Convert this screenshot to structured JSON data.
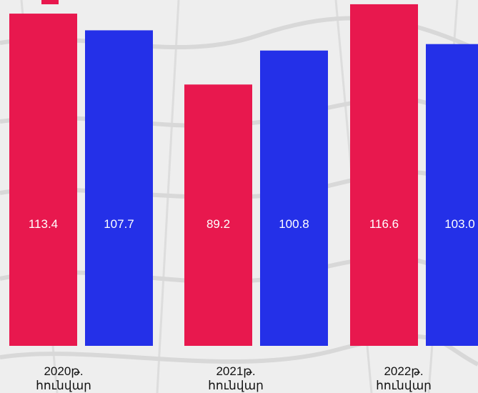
{
  "colors": {
    "series_a": "#e8184e",
    "series_b": "#2430e8",
    "label_text": "#ffffff",
    "background": "#ededed"
  },
  "chart_data": {
    "type": "bar",
    "title": "",
    "xlabel": "",
    "ylabel": "",
    "ylim": [
      0,
      120
    ],
    "grid": false,
    "legend": "none",
    "categories": [
      {
        "year": "2020թ.",
        "month": "հունվար"
      },
      {
        "year": "2021թ.",
        "month": "հունվար"
      },
      {
        "year": "2022թ.",
        "month": "հունվար"
      }
    ],
    "series": [
      {
        "values": [
          113.4,
          89.2,
          116.6
        ],
        "labels": [
          "113.4",
          "89.2",
          "116.6"
        ]
      },
      {
        "values": [
          107.7,
          100.8,
          103.0
        ],
        "labels": [
          "107.7",
          "100.8",
          "103.0"
        ]
      }
    ]
  }
}
